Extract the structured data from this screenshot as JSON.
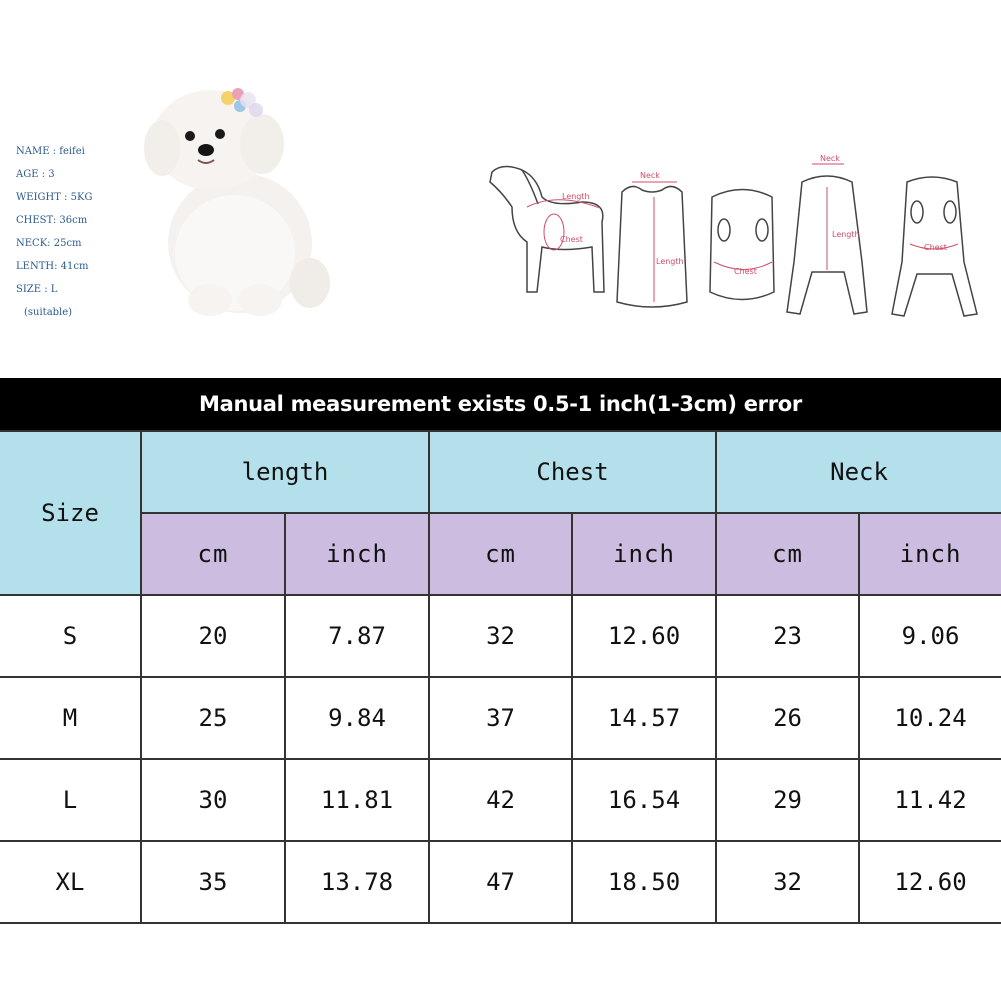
{
  "info": {
    "name": "NAME : feifei",
    "age": "AGE : 3",
    "weight": "WEIGHT : 5KG",
    "chest": "CHEST: 36cm",
    "neck": "NECK: 25cm",
    "length": "LENTH: 41cm",
    "size": "SIZE : L",
    "suitable": "(suitable)"
  },
  "diagram_labels": {
    "length": "Length",
    "chest": "Chest",
    "neck": "Neck"
  },
  "banner": "Manual measurement exists 0.5-1 inch(1-3cm) error",
  "table": {
    "size_header": "Size",
    "groups": [
      "length",
      "Chest",
      "Neck"
    ],
    "units": [
      "cm",
      "inch",
      "cm",
      "inch",
      "cm",
      "inch"
    ],
    "rows": [
      {
        "size": "S",
        "values": [
          "20",
          "7.87",
          "32",
          "12.60",
          "23",
          "9.06"
        ]
      },
      {
        "size": "M",
        "values": [
          "25",
          "9.84",
          "37",
          "14.57",
          "26",
          "10.24"
        ]
      },
      {
        "size": "L",
        "values": [
          "30",
          "11.81",
          "42",
          "16.54",
          "29",
          "11.42"
        ]
      },
      {
        "size": "XL",
        "values": [
          "35",
          "13.78",
          "47",
          "18.50",
          "32",
          "12.60"
        ]
      }
    ]
  },
  "colors": {
    "header_blue": "#b3e0ea",
    "header_purple": "#cbbce0",
    "banner_bg": "#000000",
    "info_text": "#2b5a8a"
  }
}
